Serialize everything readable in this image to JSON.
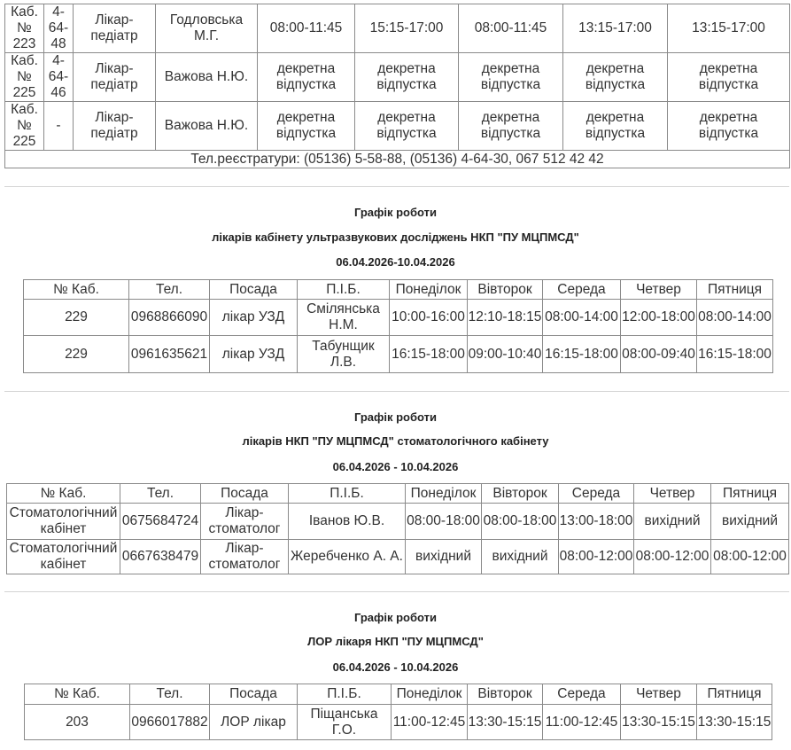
{
  "tables": [
    {
      "rows": [
        [
          "Каб. № 223",
          "4-64-48",
          "Лікар-педіатр",
          "Годловська М.Г.",
          "08:00-11:45",
          "15:15-17:00",
          "08:00-11:45",
          "13:15-17:00",
          "13:15-17:00"
        ],
        [
          "Каб. № 225",
          "4-64-46",
          "Лікар-педіатр",
          "Важова Н.Ю.",
          "декретна відпустка",
          "декретна відпустка",
          "декретна відпустка",
          "декретна відпустка",
          "декретна відпустка"
        ],
        [
          "Каб. № 225",
          "-",
          "Лікар-педіатр",
          "Важова Н.Ю.",
          "декретна відпустка",
          "декретна відпустка",
          "декретна відпустка",
          "декретна відпустка",
          "декретна відпустка"
        ]
      ],
      "footer": "Тел.реєстратури: (05136) 5-58-88, (05136) 4-64-30, 067 512 42 42"
    },
    {
      "titles": [
        "Графік роботи",
        "лікарів кабінету ультразвукових досліджень НКП \"ПУ МЦПМСД\"",
        "06.04.2026-10.04.2026"
      ],
      "header": [
        "№ Каб.",
        "Тел.",
        "Посада",
        "П.І.Б.",
        "Понеділок",
        "Вівторок",
        "Середа",
        "Четвер",
        "Пятниця"
      ],
      "rows": [
        [
          "229",
          "0968866090",
          "лікар УЗД",
          "Смілянська Н.М.",
          "10:00-16:00",
          "12:10-18:15",
          "08:00-14:00",
          "12:00-18:00",
          "08:00-14:00"
        ],
        [
          "229",
          "0961635621",
          "лікар УЗД",
          "Табунщик Л.В.",
          "16:15-18:00",
          "09:00-10:40",
          "16:15-18:00",
          "08:00-09:40",
          "16:15-18:00"
        ]
      ]
    },
    {
      "titles": [
        "Графік роботи",
        "лікарів НКП \"ПУ МЦПМСД\" стоматологічного кабінету",
        "06.04.2026 - 10.04.2026"
      ],
      "header": [
        "№ Каб.",
        "Тел.",
        "Посада",
        "П.І.Б.",
        "Понеділок",
        "Вівторок",
        "Середа",
        "Четвер",
        "Пятниця"
      ],
      "rows": [
        [
          "Стоматологічний кабінет",
          "0675684724",
          "Лікар-стоматолог",
          "Іванов Ю.В.",
          "08:00-18:00",
          "08:00-18:00",
          "13:00-18:00",
          "вихідний",
          "вихідний"
        ],
        [
          "Стоматологічний кабінет",
          "0667638479",
          "Лікар-стоматолог",
          "Жеребченко А. А.",
          "вихідний",
          "вихідний",
          "08:00-12:00",
          "08:00-12:00",
          "08:00-12:00"
        ]
      ]
    },
    {
      "titles": [
        "Графік роботи",
        "ЛОР лікаря НКП \"ПУ МЦПМСД\"",
        "06.04.2026 - 10.04.2026"
      ],
      "header": [
        "№ Каб.",
        "Тел.",
        "Посада",
        "П.І.Б.",
        "Понеділок",
        "Вівторок",
        "Середа",
        "Четвер",
        "Пятниця"
      ],
      "rows": [
        [
          "203",
          "0966017882",
          "ЛОР лікар",
          "Піщанська Г.О.",
          "11:00-12:45",
          "13:30-15:15",
          "11:00-12:45",
          "13:30-15:15",
          "13:30-15:15"
        ]
      ]
    }
  ]
}
